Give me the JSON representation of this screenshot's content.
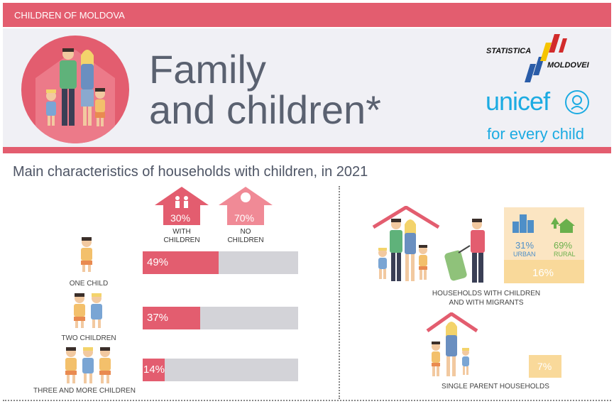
{
  "header": {
    "banner": "CHILDREN OF MOLDOVA",
    "title_line1": "Family",
    "title_line2": "and children*"
  },
  "logos": {
    "statistica_line1": "STATISTICA",
    "statistica_line2": "MOLDOVEI",
    "unicef": "unicef",
    "unicef_tagline": "for every child"
  },
  "section": {
    "subtitle": "Main characteristics of households with children, in 2021"
  },
  "households": {
    "with_children": {
      "percent": "30%",
      "label_line1": "WITH",
      "label_line2": "CHILDREN"
    },
    "no_children": {
      "percent": "70%",
      "label_line1": "NO",
      "label_line2": "CHILDREN"
    }
  },
  "children_counts": [
    {
      "label": "ONE CHILD",
      "percent_text": "49%",
      "value": 49
    },
    {
      "label": "TWO CHILDREN",
      "percent_text": "37%",
      "value": 37
    },
    {
      "label": "THREE AND MORE CHILDREN",
      "percent_text": "14%",
      "value": 14
    }
  ],
  "migrants": {
    "urban_percent": "31%",
    "urban_label": "URBAN",
    "rural_percent": "69%",
    "rural_label": "RURAL",
    "total_percent": "16%",
    "caption_line1": "HOUSEHOLDS WITH CHILDREN",
    "caption_line2": "AND WITH MIGRANTS"
  },
  "single_parent": {
    "percent": "7%",
    "caption": "SINGLE PARENT HOUSEHOLDS"
  },
  "colors": {
    "accent": "#e35d6f",
    "accent_light": "#f08a96",
    "unicef_blue": "#1cabe2",
    "title_gray": "#5a6170",
    "urban_blue": "#4e8fc8",
    "rural_green": "#6ab04c",
    "migrant_box": "#f9d99a"
  }
}
